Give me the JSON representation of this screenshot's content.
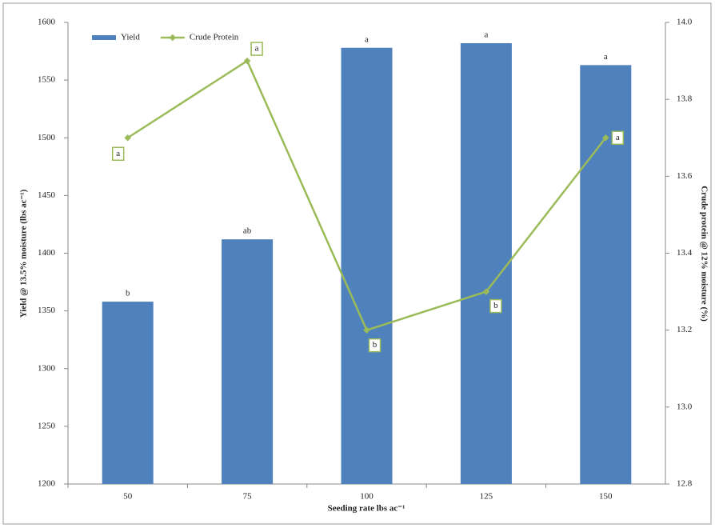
{
  "chart_data": {
    "type": "bar-line",
    "x_label": "Seeding rate lbs ac⁻¹",
    "y_label": "Yield @ 13.5% moisture (lbs ac⁻¹)",
    "y2_label": "Crude protein @ 12% moisture (%)",
    "categories": [
      "50",
      "75",
      "100",
      "125",
      "150"
    ],
    "series": [
      {
        "name": "Yield",
        "kind": "bar",
        "color": "#4f81bd",
        "values": [
          1358,
          1412,
          1578,
          1582,
          1563
        ],
        "letters": [
          "b",
          "ab",
          "a",
          "a",
          "a"
        ]
      },
      {
        "name": "Crude Protein",
        "kind": "line",
        "axis": "y2",
        "color": "#9bbb59",
        "values": [
          13.7,
          13.9,
          13.2,
          13.3,
          13.7
        ],
        "letters": [
          "a",
          "a",
          "b",
          "b",
          "a"
        ]
      }
    ],
    "ylim": [
      1200,
      1600
    ],
    "yticks": [
      1200,
      1250,
      1300,
      1350,
      1400,
      1450,
      1500,
      1550,
      1600
    ],
    "y2lim": [
      12.8,
      14.0
    ],
    "y2ticks": [
      12.8,
      {
        "value": 13,
        "label": "13.0"
      },
      13.2,
      13.4,
      13.6,
      13.8,
      {
        "value": 14,
        "label": "14.0"
      }
    ],
    "grid": false,
    "legend": "top-left"
  }
}
